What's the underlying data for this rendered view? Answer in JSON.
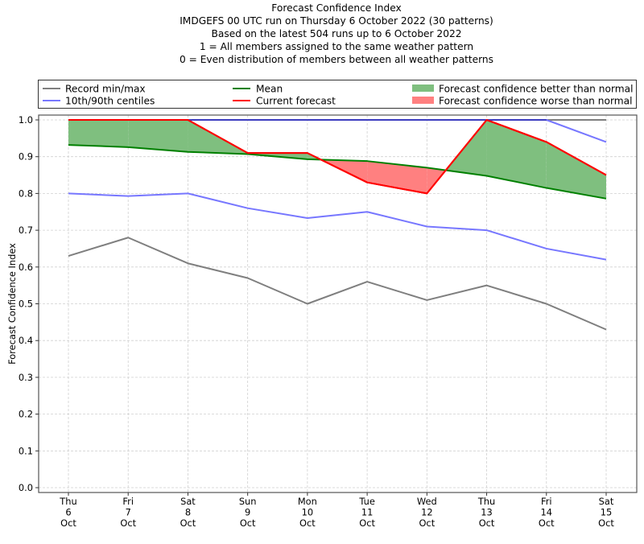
{
  "chart_data": {
    "type": "line",
    "title_lines": [
      "Forecast Confidence Index",
      "IMDGEFS 00 UTC run on Thursday 6 October 2022 (30 patterns)",
      "Based on the latest 504 runs up to 6 October 2022",
      "1 = All members assigned to the same weather pattern",
      "0 = Even distribution of members between all weather patterns"
    ],
    "xlabel": "",
    "ylabel": "Forecast Confidence Index",
    "ylim": [
      0,
      1.0
    ],
    "yticks": [
      "0.0",
      "0.1",
      "0.2",
      "0.3",
      "0.4",
      "0.5",
      "0.6",
      "0.7",
      "0.8",
      "0.9",
      "1.0"
    ],
    "ytick_values": [
      0,
      0.1,
      0.2,
      0.3,
      0.4,
      0.5,
      0.6,
      0.7,
      0.8,
      0.9,
      1.0
    ],
    "grid": true,
    "categories": [
      {
        "day": "Thu",
        "date": "6",
        "month": "Oct"
      },
      {
        "day": "Fri",
        "date": "7",
        "month": "Oct"
      },
      {
        "day": "Sat",
        "date": "8",
        "month": "Oct"
      },
      {
        "day": "Sun",
        "date": "9",
        "month": "Oct"
      },
      {
        "day": "Mon",
        "date": "10",
        "month": "Oct"
      },
      {
        "day": "Tue",
        "date": "11",
        "month": "Oct"
      },
      {
        "day": "Wed",
        "date": "12",
        "month": "Oct"
      },
      {
        "day": "Thu",
        "date": "13",
        "month": "Oct"
      },
      {
        "day": "Fri",
        "date": "14",
        "month": "Oct"
      },
      {
        "day": "Sat",
        "date": "15",
        "month": "Oct"
      }
    ],
    "series": [
      {
        "name": "Record max",
        "legend": "Record min/max",
        "color": "#7f7f7f",
        "values": [
          1.0,
          1.0,
          1.0,
          1.0,
          1.0,
          1.0,
          1.0,
          1.0,
          1.0,
          1.0
        ]
      },
      {
        "name": "Record min",
        "legend": "Record min/max",
        "color": "#7f7f7f",
        "values": [
          0.63,
          0.68,
          0.61,
          0.57,
          0.5,
          0.56,
          0.51,
          0.55,
          0.5,
          0.43
        ]
      },
      {
        "name": "90th centile",
        "legend": "10th/90th centiles",
        "color": "#7777ff",
        "values": [
          1.0,
          1.0,
          1.0,
          1.0,
          1.0,
          1.0,
          1.0,
          1.0,
          1.0,
          0.94
        ]
      },
      {
        "name": "10th centile",
        "legend": "10th/90th centiles",
        "color": "#7777ff",
        "values": [
          0.8,
          0.793,
          0.8,
          0.76,
          0.733,
          0.75,
          0.71,
          0.7,
          0.65,
          0.62
        ]
      },
      {
        "name": "Mean",
        "legend": "Mean",
        "color": "#008000",
        "values": [
          0.932,
          0.926,
          0.913,
          0.907,
          0.893,
          0.888,
          0.87,
          0.848,
          0.815,
          0.786
        ]
      },
      {
        "name": "Current forecast",
        "legend": "Current forecast",
        "color": "#ff0000",
        "values": [
          1.0,
          1.0,
          1.0,
          0.91,
          0.91,
          0.83,
          0.8,
          1.0,
          0.94,
          0.85
        ]
      }
    ],
    "fills": [
      {
        "name": "Forecast confidence better than normal",
        "color": "#7fbf7f"
      },
      {
        "name": "Forecast confidence worse than normal",
        "color": "#ff8080"
      }
    ],
    "legend": {
      "placement": "top",
      "entries": [
        {
          "label": "Record min/max",
          "color": "#7f7f7f",
          "kind": "line"
        },
        {
          "label": "10th/90th centiles",
          "color": "#7777ff",
          "kind": "line"
        },
        {
          "label": "Mean",
          "color": "#008000",
          "kind": "line"
        },
        {
          "label": "Current forecast",
          "color": "#ff0000",
          "kind": "line"
        },
        {
          "label": "Forecast confidence better than normal",
          "color": "#7fbf7f",
          "kind": "patch"
        },
        {
          "label": "Forecast confidence worse than normal",
          "color": "#ff8080",
          "kind": "patch"
        }
      ]
    }
  }
}
